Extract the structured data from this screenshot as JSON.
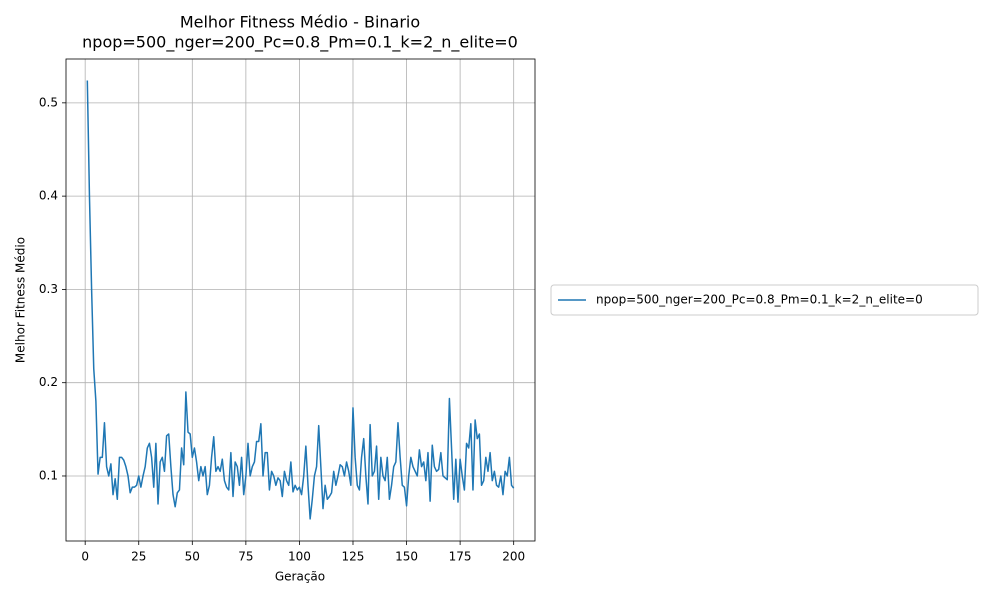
{
  "chart_data": {
    "type": "line",
    "title": "Melhor Fitness Médio - Binario",
    "subtitle": "npop=500_nger=200_Pc=0.8_Pm=0.1_k=2_n_elite=0",
    "xlabel": "Geração",
    "ylabel": "Melhor Fitness Médio",
    "x": [
      1,
      2,
      3,
      4,
      5,
      6,
      7,
      8,
      9,
      10,
      11,
      12,
      13,
      14,
      15,
      16,
      17,
      18,
      19,
      20,
      21,
      22,
      23,
      24,
      25,
      26,
      27,
      28,
      29,
      30,
      31,
      32,
      33,
      34,
      35,
      36,
      37,
      38,
      39,
      40,
      41,
      42,
      43,
      44,
      45,
      46,
      47,
      48,
      49,
      50,
      51,
      52,
      53,
      54,
      55,
      56,
      57,
      58,
      59,
      60,
      61,
      62,
      63,
      64,
      65,
      66,
      67,
      68,
      69,
      70,
      71,
      72,
      73,
      74,
      75,
      76,
      77,
      78,
      79,
      80,
      81,
      82,
      83,
      84,
      85,
      86,
      87,
      88,
      89,
      90,
      91,
      92,
      93,
      94,
      95,
      96,
      97,
      98,
      99,
      100,
      101,
      102,
      103,
      104,
      105,
      106,
      107,
      108,
      109,
      110,
      111,
      112,
      113,
      114,
      115,
      116,
      117,
      118,
      119,
      120,
      121,
      122,
      123,
      124,
      125,
      126,
      127,
      128,
      129,
      130,
      131,
      132,
      133,
      134,
      135,
      136,
      137,
      138,
      139,
      140,
      141,
      142,
      143,
      144,
      145,
      146,
      147,
      148,
      149,
      150,
      151,
      152,
      153,
      154,
      155,
      156,
      157,
      158,
      159,
      160,
      161,
      162,
      163,
      164,
      165,
      166,
      167,
      168,
      169,
      170,
      171,
      172,
      173,
      174,
      175,
      176,
      177,
      178,
      179,
      180,
      181,
      182,
      183,
      184,
      185,
      186,
      187,
      188,
      189,
      190,
      191,
      192,
      193,
      194,
      195,
      196,
      197,
      198,
      199,
      200
    ],
    "series": [
      {
        "name": "npop=500_nger=200_Pc=0.8_Pm=0.1_k=2_n_elite=0",
        "color": "#1f77b4",
        "values": [
          0.524,
          0.4,
          0.3,
          0.215,
          0.18,
          0.102,
          0.12,
          0.12,
          0.157,
          0.11,
          0.1,
          0.113,
          0.08,
          0.097,
          0.075,
          0.12,
          0.12,
          0.117,
          0.11,
          0.1,
          0.082,
          0.088,
          0.088,
          0.09,
          0.1,
          0.088,
          0.1,
          0.11,
          0.13,
          0.135,
          0.12,
          0.088,
          0.135,
          0.07,
          0.115,
          0.12,
          0.105,
          0.143,
          0.145,
          0.11,
          0.08,
          0.067,
          0.082,
          0.085,
          0.13,
          0.112,
          0.19,
          0.147,
          0.145,
          0.12,
          0.13,
          0.115,
          0.095,
          0.11,
          0.1,
          0.11,
          0.08,
          0.09,
          0.12,
          0.142,
          0.105,
          0.11,
          0.105,
          0.118,
          0.095,
          0.088,
          0.085,
          0.125,
          0.078,
          0.115,
          0.11,
          0.09,
          0.12,
          0.08,
          0.1,
          0.135,
          0.1,
          0.11,
          0.115,
          0.137,
          0.137,
          0.156,
          0.1,
          0.125,
          0.125,
          0.085,
          0.105,
          0.1,
          0.09,
          0.098,
          0.095,
          0.078,
          0.105,
          0.095,
          0.09,
          0.115,
          0.083,
          0.09,
          0.085,
          0.088,
          0.08,
          0.1,
          0.132,
          0.09,
          0.054,
          0.075,
          0.1,
          0.11,
          0.154,
          0.11,
          0.065,
          0.09,
          0.075,
          0.078,
          0.082,
          0.105,
          0.09,
          0.1,
          0.112,
          0.11,
          0.1,
          0.115,
          0.105,
          0.09,
          0.173,
          0.12,
          0.09,
          0.085,
          0.12,
          0.14,
          0.1,
          0.07,
          0.155,
          0.1,
          0.105,
          0.132,
          0.075,
          0.12,
          0.1,
          0.095,
          0.12,
          0.075,
          0.09,
          0.11,
          0.115,
          0.157,
          0.12,
          0.09,
          0.088,
          0.068,
          0.1,
          0.12,
          0.11,
          0.105,
          0.1,
          0.128,
          0.11,
          0.115,
          0.095,
          0.125,
          0.073,
          0.133,
          0.11,
          0.105,
          0.107,
          0.125,
          0.1,
          0.098,
          0.096,
          0.183,
          0.13,
          0.075,
          0.118,
          0.072,
          0.118,
          0.1,
          0.085,
          0.135,
          0.13,
          0.156,
          0.085,
          0.16,
          0.14,
          0.145,
          0.09,
          0.095,
          0.12,
          0.105,
          0.125,
          0.095,
          0.105,
          0.09,
          0.088,
          0.1,
          0.08,
          0.105,
          0.1,
          0.12,
          0.09,
          0.087
        ]
      }
    ],
    "xlim": [
      -8.95,
      209.95
    ],
    "xticks": [
      0,
      25,
      50,
      75,
      100,
      125,
      150,
      175,
      200
    ],
    "ylim": [
      0.0303,
      0.547
    ],
    "yticks": [
      0.1,
      0.2,
      0.3,
      0.4,
      0.5
    ],
    "grid": true,
    "legend": "outside right"
  }
}
